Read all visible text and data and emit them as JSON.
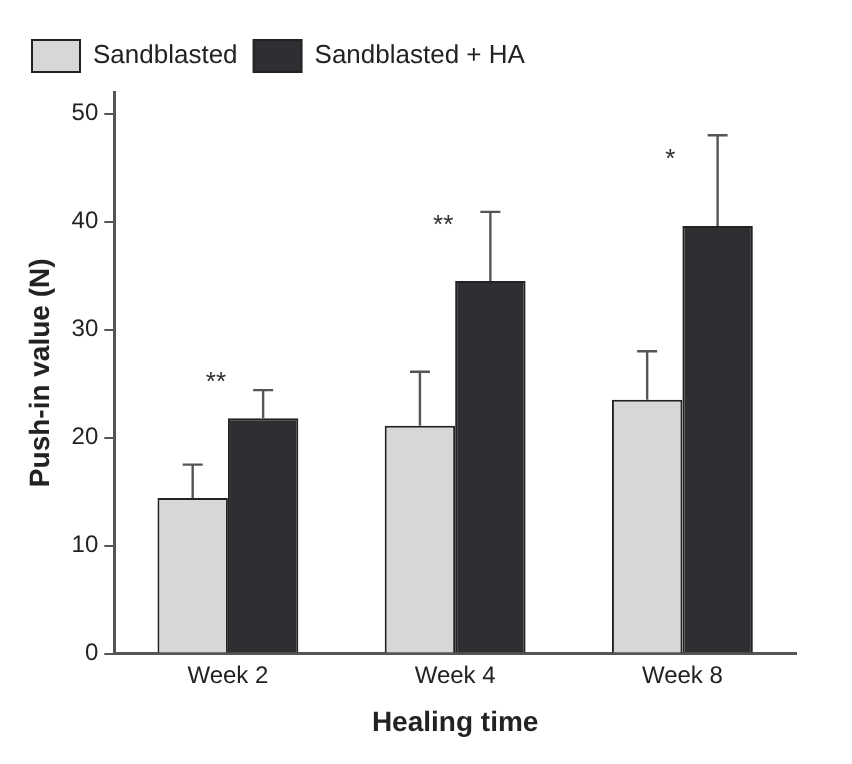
{
  "chart_data": {
    "type": "bar",
    "xlabel": "Healing time",
    "ylabel": "Push-in value (N)",
    "categories": [
      "Week 2",
      "Week 4",
      "Week 8"
    ],
    "series": [
      {
        "name": "Sandblasted",
        "color": "#d6d7d9",
        "values": [
          14.4,
          21.1,
          23.5
        ],
        "errors": [
          [
            14.4,
            17.5
          ],
          [
            21.1,
            26.1
          ],
          [
            23.5,
            28
          ]
        ]
      },
      {
        "name": "Sandblasted + HA",
        "color": "#2e2f33",
        "values": [
          21.8,
          34.5,
          39.6
        ],
        "errors": [
          [
            21.8,
            24.4
          ],
          [
            34.5,
            40.9
          ],
          [
            39.6,
            48
          ]
        ]
      }
    ],
    "ylim": [
      0,
      52
    ],
    "yticks": [
      0,
      10,
      20,
      30,
      40,
      50
    ],
    "grid": false,
    "legend": "top",
    "annotations": [
      "**",
      "**",
      "*"
    ]
  }
}
